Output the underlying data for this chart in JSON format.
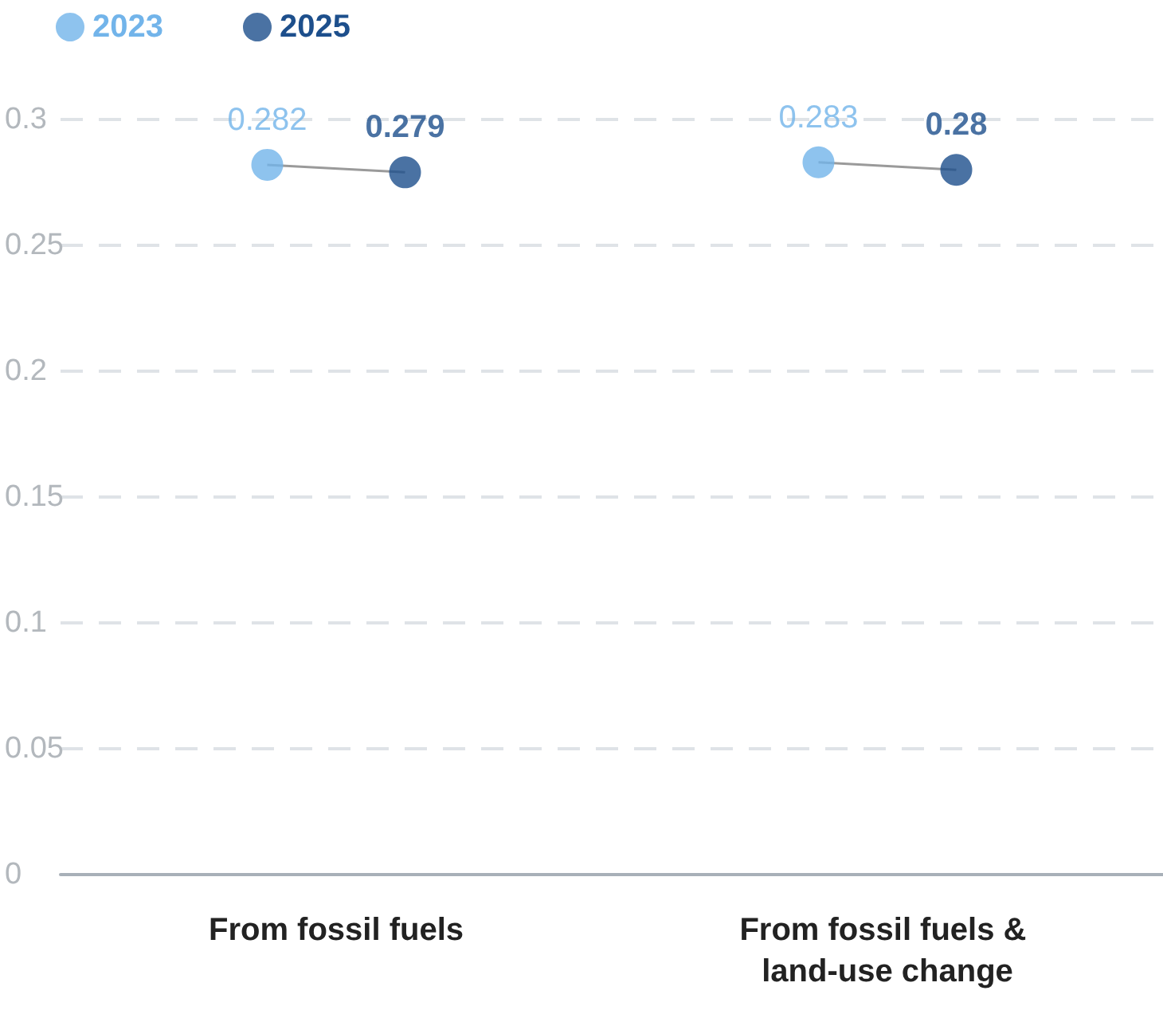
{
  "chart_data": {
    "type": "scatter",
    "categories": [
      "From fossil fuels",
      "From fossil fuels & land-use change"
    ],
    "series": [
      {
        "name": "2023",
        "color": "#72b4ea",
        "values": [
          0.282,
          0.283
        ]
      },
      {
        "name": "2025",
        "color": "#1d4f8c",
        "values": [
          0.279,
          0.28
        ]
      }
    ],
    "ylim": [
      0,
      0.3
    ],
    "yticks": [
      0,
      0.05,
      0.1,
      0.15,
      0.2,
      0.25,
      0.3
    ],
    "grid": "y",
    "legend": "top left",
    "data_labels": true,
    "marker": "circle"
  }
}
